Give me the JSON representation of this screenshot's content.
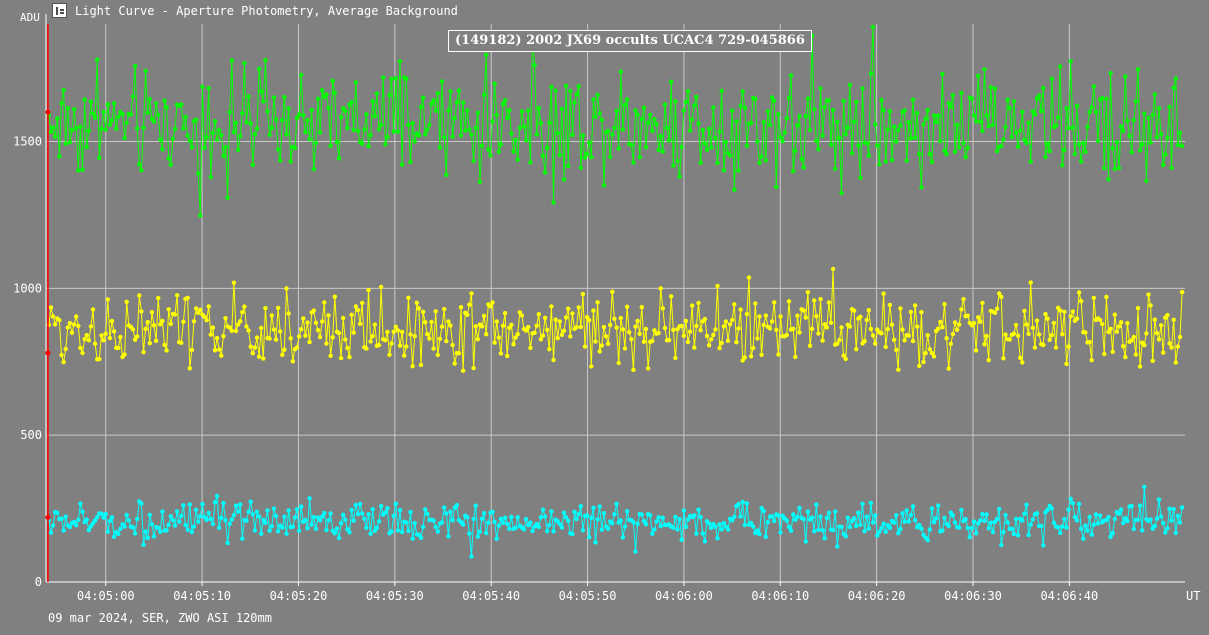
{
  "window": {
    "title": "Light Curve - Aperture Photometry, Average Background",
    "icon": "light-curve-app-icon"
  },
  "footer": {
    "info": "09 mar 2024, SER, ZWO ASI 120mm"
  },
  "colors": {
    "background": "#808080",
    "grid": "#c8c8c8",
    "axis": "#ffffff",
    "marker_line": "#ff0000",
    "series_green": "#00ff00",
    "series_yellow": "#ffff00",
    "series_cyan": "#00ffff"
  },
  "chart_data": {
    "type": "line",
    "title": "(149182) 2002 JX69 occults UCAC4 729-045866",
    "xlabel": "UT",
    "ylabel": "ADU",
    "ylim": [
      0,
      1900
    ],
    "yticks": [
      0,
      500,
      1000,
      1500
    ],
    "xlim": [
      "04:04:53.8",
      "04:06:52.0"
    ],
    "xtick_labels": [
      "04:05:00",
      "04:05:10",
      "04:05:20",
      "04:05:30",
      "04:05:40",
      "04:05:50",
      "04:06:00",
      "04:06:10",
      "04:06:20",
      "04:06:30",
      "04:06:40"
    ],
    "xtick_seconds": [
      6.2,
      16.2,
      26.2,
      36.2,
      46.2,
      56.2,
      66.2,
      76.2,
      86.2,
      96.2,
      106.2
    ],
    "x_range_seconds": [
      0,
      118.2
    ],
    "grid": true,
    "legend": "none",
    "marker_time_seconds": 0.2,
    "marker_points": [
      1600,
      780,
      220
    ],
    "series": [
      {
        "color": "#00ff00",
        "mean": 1560,
        "noise_amplitude": 130,
        "n_points": 540,
        "approx_min": 1080,
        "approx_max": 1890
      },
      {
        "color": "#ffff00",
        "mean": 860,
        "noise_amplitude": 90,
        "n_points": 540,
        "approx_min": 600,
        "approx_max": 1160
      },
      {
        "color": "#00ffff",
        "mean": 205,
        "noise_amplitude": 45,
        "n_points": 540,
        "approx_min": 30,
        "approx_max": 380
      }
    ]
  }
}
